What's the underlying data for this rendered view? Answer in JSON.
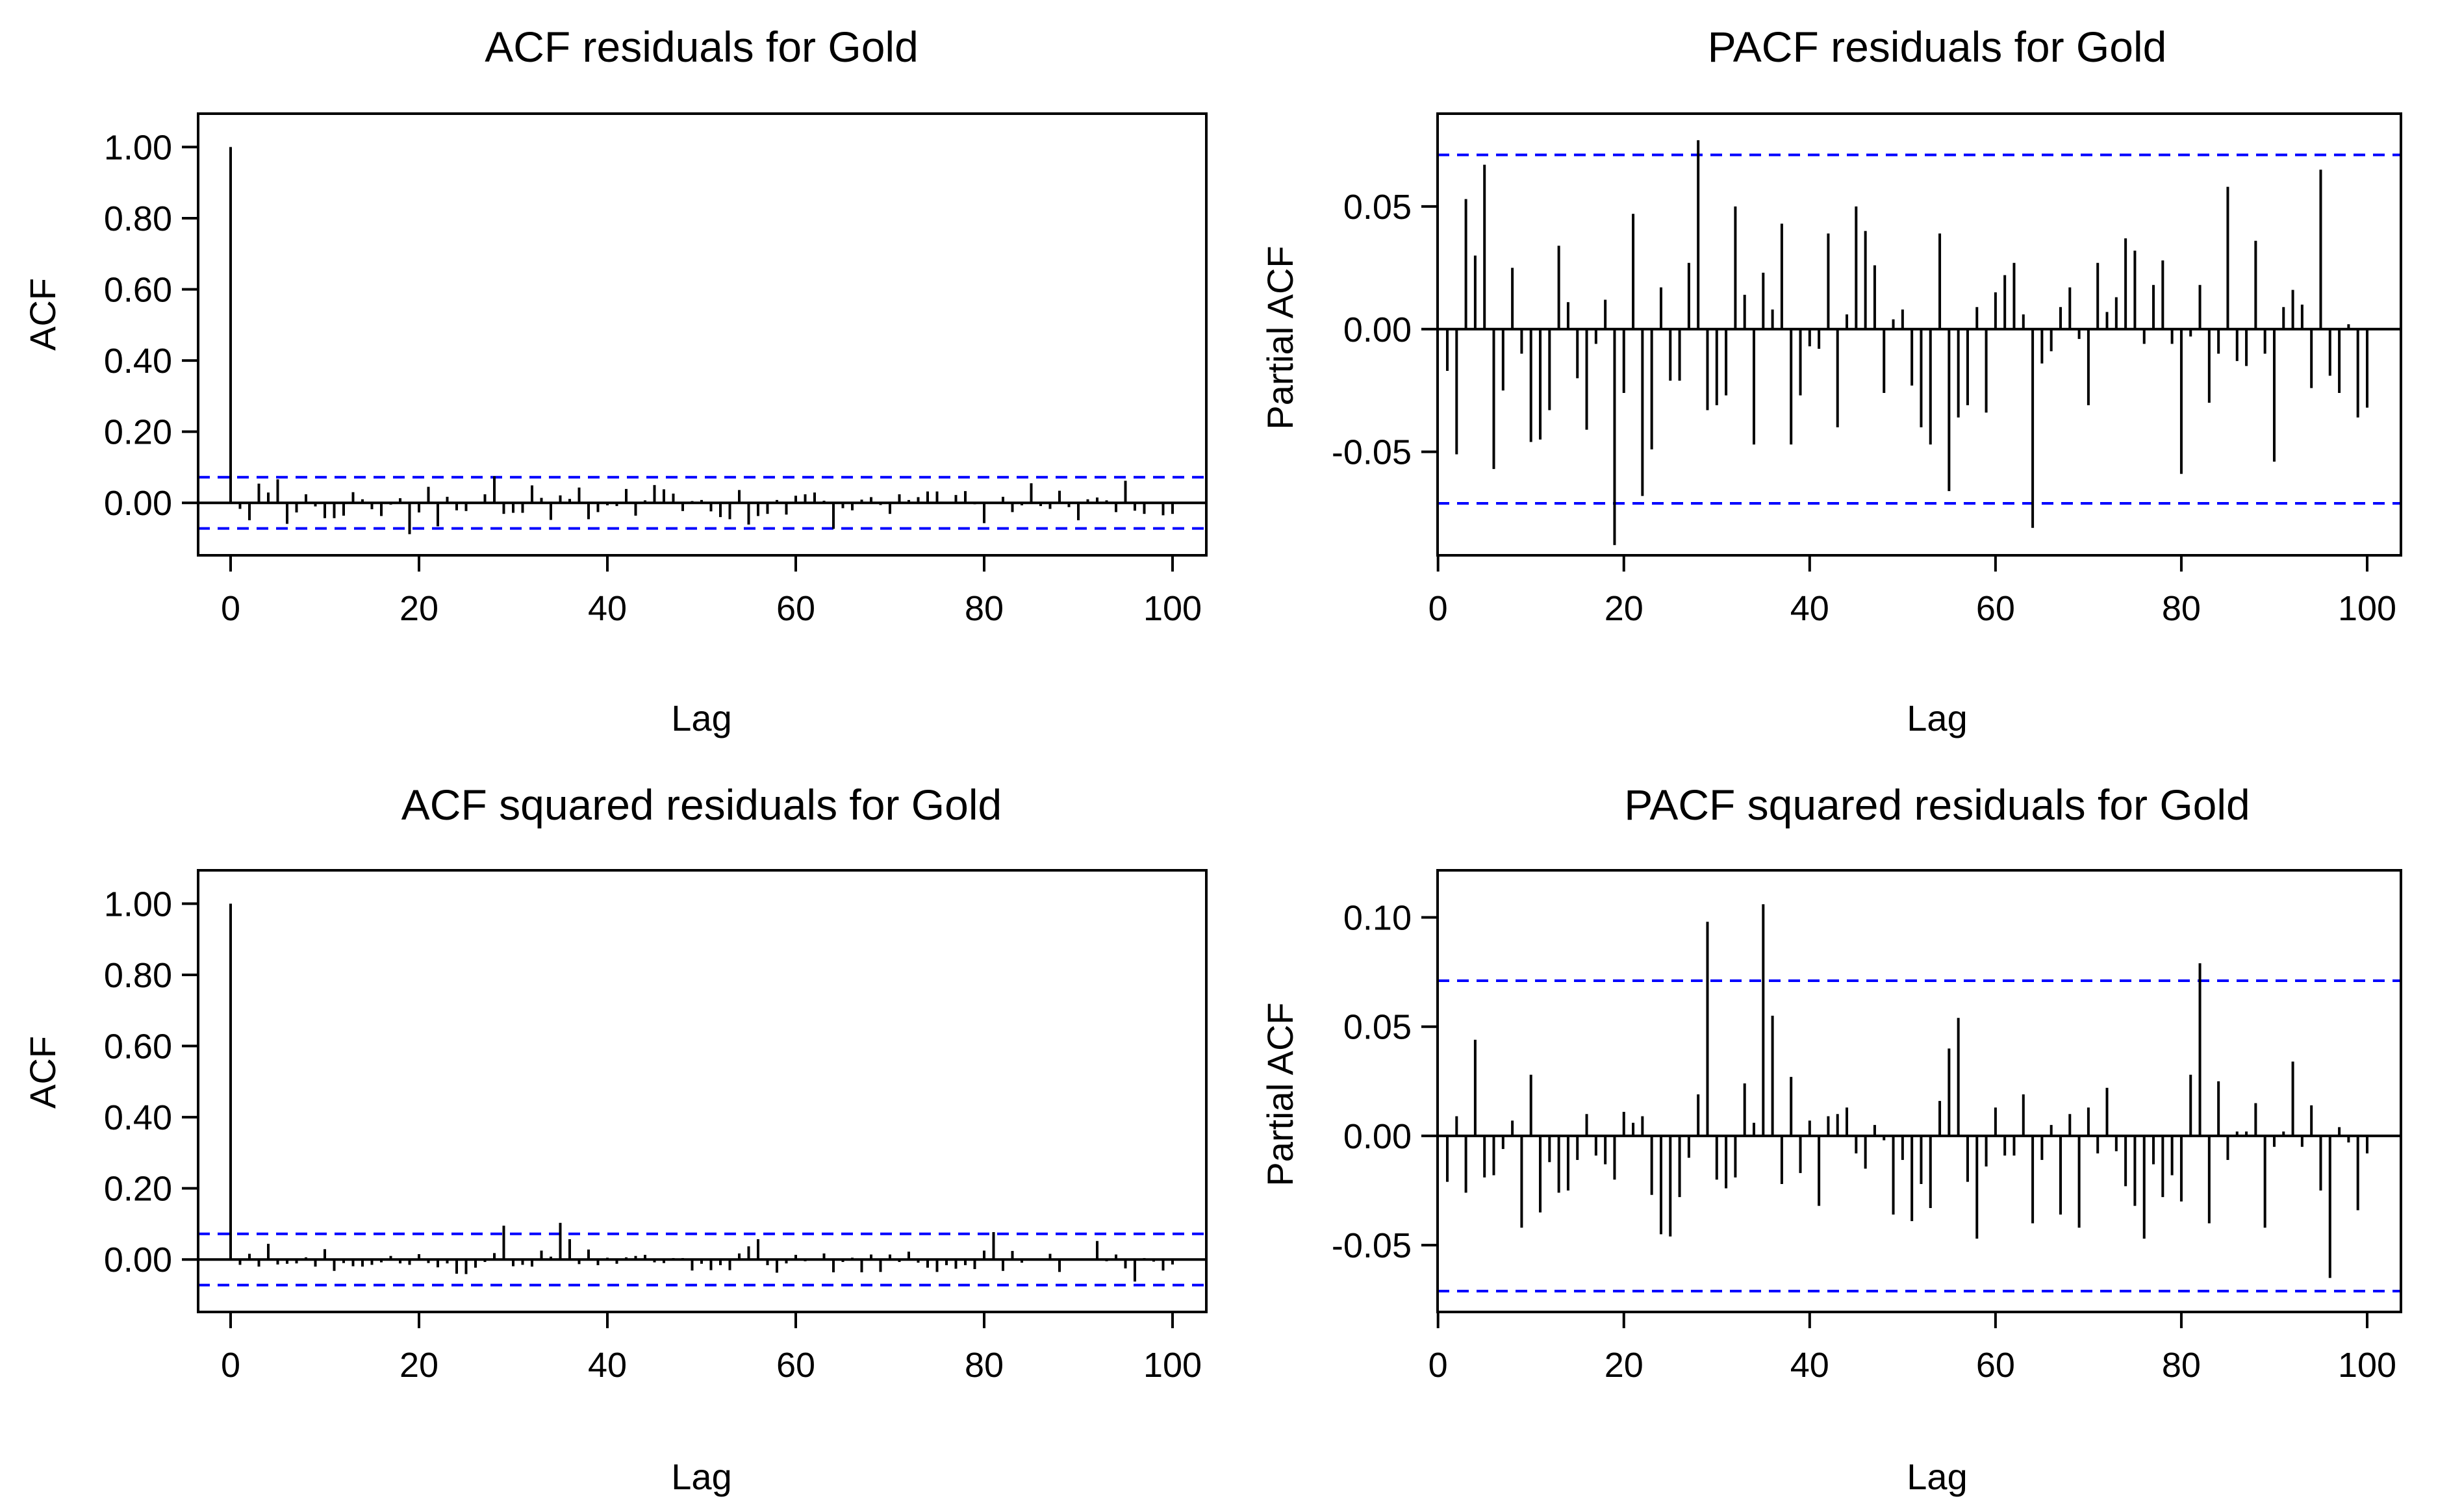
{
  "chart_data": [
    {
      "type": "bar",
      "title": "ACF residuals for Gold",
      "xlabel": "Lag",
      "ylabel": "ACF",
      "xlim": [
        0,
        100
      ],
      "ylim": [
        -0.1,
        1.05
      ],
      "x_ticks": [
        0,
        20,
        40,
        60,
        80,
        100
      ],
      "y_ticks": [
        0.0,
        0.2,
        0.4,
        0.6,
        0.8,
        1.0
      ],
      "y_tick_labels": [
        "0.00",
        "0.20",
        "0.40",
        "0.60",
        "0.80",
        "1.00"
      ],
      "confidence_bound": 0.072,
      "bound_color": "#0000ff",
      "bar_color": "#000000",
      "series": [
        {
          "values": [
            1.0,
            -0.017,
            -0.049,
            0.054,
            0.029,
            0.066,
            -0.059,
            -0.027,
            0.024,
            -0.01,
            -0.043,
            -0.043,
            -0.036,
            0.03,
            0.01,
            -0.018,
            -0.037,
            -0.005,
            0.013,
            -0.088,
            -0.027,
            0.045,
            -0.066,
            0.017,
            -0.021,
            -0.023,
            0.003,
            0.024,
            0.075,
            -0.031,
            -0.028,
            -0.028,
            0.049,
            0.014,
            -0.048,
            0.021,
            0.011,
            0.043,
            -0.046,
            -0.026,
            -0.007,
            -0.009,
            0.039,
            -0.036,
            0.007,
            0.05,
            0.038,
            0.026,
            -0.023,
            0.005,
            0.008,
            -0.024,
            -0.04,
            -0.046,
            0.036,
            -0.061,
            -0.037,
            -0.031,
            0.008,
            -0.033,
            0.02,
            0.024,
            0.029,
            0.006,
            -0.073,
            -0.015,
            -0.021,
            0.009,
            0.016,
            -0.006,
            -0.031,
            0.024,
            0.008,
            0.016,
            0.032,
            0.032,
            -0.003,
            0.022,
            0.033,
            -0.004,
            -0.057,
            -0.003,
            0.017,
            -0.026,
            -0.007,
            0.055,
            -0.009,
            -0.017,
            0.034,
            -0.012,
            -0.049,
            0.01,
            0.015,
            0.007,
            -0.026,
            0.062,
            -0.022,
            -0.031,
            0.002,
            -0.035,
            -0.031
          ]
        }
      ]
    },
    {
      "type": "bar",
      "title": "PACF residuals for Gold",
      "xlabel": "Lag",
      "ylabel": "Partial ACF",
      "xlim": [
        1,
        100
      ],
      "ylim": [
        -0.089,
        0.082
      ],
      "x_ticks": [
        0,
        20,
        40,
        60,
        80,
        100
      ],
      "y_ticks": [
        -0.05,
        0.0,
        0.05
      ],
      "y_tick_labels": [
        "-0.05",
        "0.00",
        "0.05"
      ],
      "confidence_bound": 0.071,
      "bound_color": "#0000ff",
      "bar_color": "#000000",
      "series": [
        {
          "values": [
            -0.017,
            -0.051,
            0.053,
            0.03,
            0.067,
            -0.057,
            -0.025,
            0.025,
            -0.01,
            -0.046,
            -0.045,
            -0.033,
            0.034,
            0.011,
            -0.02,
            -0.041,
            -0.006,
            0.012,
            -0.088,
            -0.026,
            0.047,
            -0.068,
            -0.049,
            0.017,
            -0.021,
            -0.021,
            0.027,
            0.077,
            -0.033,
            -0.031,
            -0.027,
            0.05,
            0.014,
            -0.047,
            0.023,
            0.008,
            0.043,
            -0.047,
            -0.027,
            -0.007,
            -0.008,
            0.039,
            -0.04,
            0.006,
            0.05,
            0.04,
            0.026,
            -0.026,
            0.004,
            0.008,
            -0.023,
            -0.04,
            -0.047,
            0.039,
            -0.066,
            -0.036,
            -0.031,
            0.009,
            -0.034,
            0.015,
            0.022,
            0.027,
            0.006,
            -0.081,
            -0.014,
            -0.009,
            0.009,
            0.017,
            -0.004,
            -0.031,
            0.027,
            0.007,
            0.013,
            0.037,
            0.032,
            -0.006,
            0.018,
            0.028,
            -0.006,
            -0.059,
            -0.003,
            0.018,
            -0.03,
            -0.01,
            0.058,
            -0.013,
            -0.015,
            0.036,
            -0.01,
            -0.054,
            0.009,
            0.016,
            0.01,
            -0.024,
            0.065,
            -0.019,
            -0.026,
            0.002,
            -0.036,
            -0.032
          ]
        }
      ]
    },
    {
      "type": "bar",
      "title": "ACF squared residuals for Gold",
      "xlabel": "Lag",
      "ylabel": "ACF",
      "xlim": [
        0,
        100
      ],
      "ylim": [
        -0.1,
        1.05
      ],
      "x_ticks": [
        0,
        20,
        40,
        60,
        80,
        100
      ],
      "y_ticks": [
        0.0,
        0.2,
        0.4,
        0.6,
        0.8,
        1.0
      ],
      "y_tick_labels": [
        "0.00",
        "0.20",
        "0.40",
        "0.60",
        "0.80",
        "1.00"
      ],
      "confidence_bound": 0.072,
      "bound_color": "#0000ff",
      "bar_color": "#000000",
      "series": [
        {
          "values": [
            1.0,
            -0.015,
            0.016,
            -0.02,
            0.044,
            -0.014,
            -0.012,
            -0.011,
            0.006,
            -0.02,
            0.029,
            -0.032,
            -0.01,
            -0.019,
            -0.02,
            -0.015,
            -0.008,
            0.01,
            -0.011,
            -0.015,
            0.015,
            -0.01,
            -0.022,
            -0.011,
            -0.04,
            -0.041,
            -0.023,
            -0.007,
            0.018,
            0.095,
            -0.019,
            -0.015,
            -0.02,
            0.025,
            0.008,
            0.103,
            0.057,
            -0.013,
            0.028,
            -0.016,
            0.005,
            -0.012,
            0.006,
            0.01,
            0.013,
            -0.008,
            -0.01,
            0.004,
            0.004,
            -0.031,
            -0.012,
            -0.03,
            -0.016,
            -0.03,
            0.017,
            0.037,
            0.057,
            -0.016,
            -0.037,
            -0.011,
            0.013,
            -0.005,
            -0.003,
            0.017,
            -0.036,
            -0.007,
            0.005,
            -0.036,
            0.014,
            -0.035,
            0.014,
            -0.007,
            0.022,
            -0.009,
            -0.023,
            -0.035,
            -0.016,
            -0.026,
            -0.016,
            -0.027,
            0.025,
            0.077,
            -0.032,
            0.024,
            -0.009,
            0.002,
            0.001,
            0.016,
            -0.035,
            -0.003,
            0.002,
            0.001,
            0.052,
            -0.005,
            0.014,
            -0.025,
            -0.062,
            0.004,
            -0.006,
            -0.031,
            -0.014
          ]
        }
      ]
    },
    {
      "type": "bar",
      "title": "PACF squared residuals for Gold",
      "xlabel": "Lag",
      "ylabel": "Partial ACF",
      "xlim": [
        1,
        100
      ],
      "ylim": [
        -0.077,
        0.115
      ],
      "x_ticks": [
        0,
        20,
        40,
        60,
        80,
        100
      ],
      "y_ticks": [
        -0.05,
        0.0,
        0.05,
        0.1
      ],
      "y_tick_labels": [
        "-0.05",
        "0.00",
        "0.05",
        "0.10"
      ],
      "confidence_bound": 0.071,
      "bound_color": "#0000ff",
      "bar_color": "#000000",
      "series": [
        {
          "values": [
            -0.021,
            0.009,
            -0.026,
            0.044,
            -0.019,
            -0.018,
            -0.006,
            0.007,
            -0.042,
            0.028,
            -0.035,
            -0.012,
            -0.026,
            -0.025,
            -0.011,
            0.01,
            -0.009,
            -0.013,
            -0.02,
            0.011,
            0.006,
            0.009,
            -0.027,
            -0.045,
            -0.046,
            -0.028,
            -0.01,
            0.019,
            0.098,
            -0.02,
            -0.024,
            -0.019,
            0.024,
            0.006,
            0.106,
            0.055,
            -0.022,
            0.027,
            -0.017,
            0.007,
            -0.032,
            0.009,
            0.01,
            0.013,
            -0.008,
            -0.015,
            0.005,
            -0.002,
            -0.036,
            -0.011,
            -0.039,
            -0.022,
            -0.033,
            0.016,
            0.04,
            0.054,
            -0.021,
            -0.047,
            -0.014,
            0.013,
            -0.009,
            -0.009,
            0.019,
            -0.04,
            -0.011,
            0.005,
            -0.036,
            0.01,
            -0.042,
            0.013,
            -0.008,
            0.022,
            -0.007,
            -0.023,
            -0.032,
            -0.047,
            -0.013,
            -0.028,
            -0.018,
            -0.03,
            0.028,
            0.079,
            -0.04,
            0.025,
            -0.011,
            0.002,
            0.002,
            0.015,
            -0.042,
            -0.005,
            0.002,
            0.034,
            -0.005,
            0.014,
            -0.025,
            -0.065,
            0.004,
            -0.003,
            -0.034,
            -0.008
          ]
        }
      ]
    }
  ]
}
